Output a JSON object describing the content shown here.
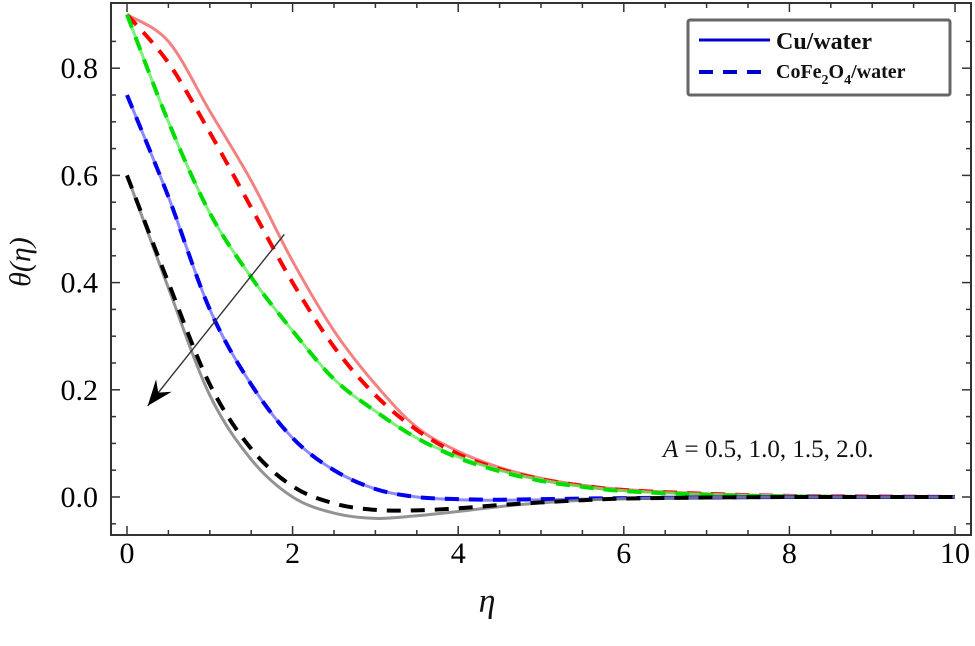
{
  "chart_data": {
    "type": "line",
    "title": "",
    "xlabel": "η",
    "ylabel": "θ(η)",
    "xlim": [
      -0.2,
      10.2
    ],
    "ylim": [
      -0.07,
      0.92
    ],
    "xticks": [
      0,
      2,
      4,
      6,
      8,
      10
    ],
    "xtick_labels": [
      "0",
      "2",
      "4",
      "6",
      "8",
      "10"
    ],
    "yticks": [
      0.0,
      0.2,
      0.4,
      0.6,
      0.8
    ],
    "ytick_labels": [
      "0.0",
      "0.2",
      "0.4",
      "0.6",
      "0.8"
    ],
    "grid": false,
    "legend": {
      "position": "upper right",
      "entries": [
        {
          "label": "Cu/water",
          "style": "solid",
          "color": "#0000cc"
        },
        {
          "label_main": "CoFe",
          "sub1": "2",
          "label_mid": "O",
          "sub2": "4",
          "label_tail": "/water",
          "label": "CoFe2O4/water",
          "style": "dashed",
          "color": "#0000cc"
        }
      ]
    },
    "annotation": {
      "text_var": "A",
      "text_values": " = 0.5, 1.0, 1.5, 2.0.",
      "arrow": {
        "from": [
          1.9,
          0.49
        ],
        "to": [
          0.25,
          0.17
        ],
        "meaning": "increasing A"
      }
    },
    "x": [
      0,
      0.5,
      1.0,
      1.5,
      2.0,
      2.5,
      3.0,
      3.5,
      4.0,
      4.5,
      5.0,
      5.5,
      6.0,
      7.0,
      8.0,
      9.0,
      10.0
    ],
    "series": [
      {
        "name": "A=0.5 Cu/water",
        "A": 0.5,
        "fluid": "Cu/water",
        "color": "#f26b6b",
        "style": "solid",
        "values": [
          0.9,
          0.85,
          0.72,
          0.59,
          0.44,
          0.31,
          0.21,
          0.13,
          0.085,
          0.055,
          0.035,
          0.022,
          0.014,
          0.006,
          0.002,
          0.001,
          0.0
        ]
      },
      {
        "name": "A=0.5 CoFe2O4/water",
        "A": 0.5,
        "fluid": "CoFe2O4/water",
        "color": "#ff0000",
        "style": "dashed",
        "values": [
          0.9,
          0.81,
          0.68,
          0.54,
          0.4,
          0.28,
          0.19,
          0.125,
          0.08,
          0.052,
          0.033,
          0.021,
          0.013,
          0.006,
          0.002,
          0.001,
          0.0
        ]
      },
      {
        "name": "A=1.0 Cu/water",
        "A": 1.0,
        "fluid": "Cu/water",
        "color": "#66ee66",
        "style": "solid",
        "values": [
          0.9,
          0.7,
          0.53,
          0.41,
          0.31,
          0.22,
          0.16,
          0.11,
          0.075,
          0.05,
          0.032,
          0.02,
          0.012,
          0.005,
          0.002,
          0.0,
          0.0
        ]
      },
      {
        "name": "A=1.0 CoFe2O4/water",
        "A": 1.0,
        "fluid": "CoFe2O4/water",
        "color": "#00dd00",
        "style": "dashed",
        "values": [
          0.9,
          0.7,
          0.53,
          0.41,
          0.31,
          0.22,
          0.16,
          0.11,
          0.073,
          0.048,
          0.03,
          0.019,
          0.011,
          0.004,
          0.001,
          0.0,
          0.0
        ]
      },
      {
        "name": "A=1.5 Cu/water",
        "A": 1.5,
        "fluid": "Cu/water",
        "color": "#7777ff",
        "style": "solid",
        "values": [
          0.75,
          0.56,
          0.35,
          0.21,
          0.11,
          0.05,
          0.015,
          0.0,
          -0.005,
          -0.006,
          -0.005,
          -0.004,
          -0.003,
          -0.001,
          0.0,
          0.0,
          0.0
        ]
      },
      {
        "name": "A=1.5 CoFe2O4/water",
        "A": 1.5,
        "fluid": "CoFe2O4/water",
        "color": "#0000ee",
        "style": "dashed",
        "values": [
          0.75,
          0.56,
          0.35,
          0.21,
          0.11,
          0.05,
          0.015,
          0.0,
          -0.004,
          -0.005,
          -0.004,
          -0.003,
          -0.002,
          -0.001,
          0.0,
          0.0,
          0.0
        ]
      },
      {
        "name": "A=2.0 Cu/water",
        "A": 2.0,
        "fluid": "Cu/water",
        "color": "#808080",
        "style": "solid",
        "values": [
          0.6,
          0.39,
          0.19,
          0.07,
          0.0,
          -0.03,
          -0.04,
          -0.035,
          -0.027,
          -0.018,
          -0.011,
          -0.006,
          -0.003,
          -0.001,
          0.0,
          0.0,
          0.0
        ]
      },
      {
        "name": "A=2.0 CoFe2O4/water",
        "A": 2.0,
        "fluid": "CoFe2O4/water",
        "color": "#000000",
        "style": "dashed",
        "values": [
          0.6,
          0.4,
          0.21,
          0.09,
          0.02,
          -0.012,
          -0.024,
          -0.025,
          -0.021,
          -0.015,
          -0.01,
          -0.006,
          -0.003,
          -0.001,
          0.0,
          0.0,
          0.0
        ]
      }
    ]
  }
}
